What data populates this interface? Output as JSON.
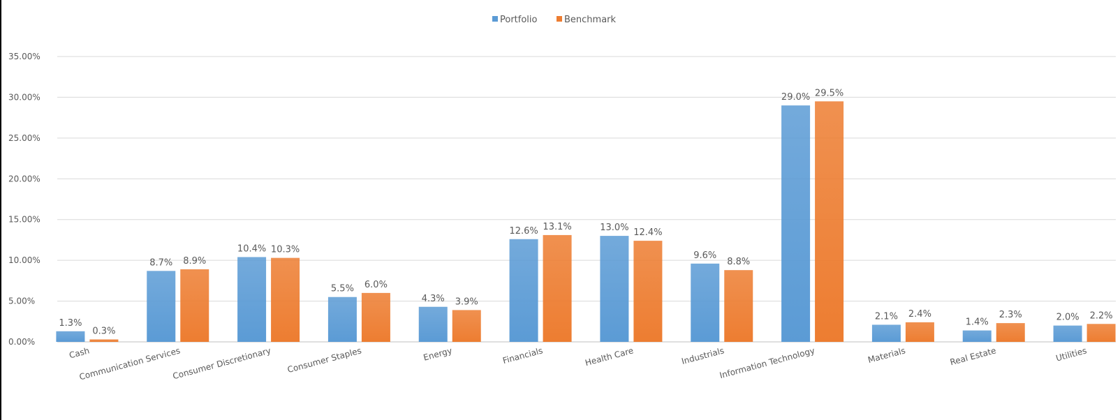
{
  "chart_data": {
    "type": "bar",
    "categories": [
      "Cash",
      "Communication Services",
      "Consumer Discretionary",
      "Consumer Staples",
      "Energy",
      "Financials",
      "Health Care",
      "Industrials",
      "Information Technology",
      "Materials",
      "Real Estate",
      "Utilities"
    ],
    "series": [
      {
        "name": "Portfolio",
        "color": "#5b9bd5",
        "values": [
          1.3,
          8.7,
          10.4,
          5.5,
          4.3,
          12.6,
          13.0,
          9.6,
          29.0,
          2.1,
          1.4,
          2.0
        ],
        "labels": [
          "1.3%",
          "8.7%",
          "10.4%",
          "5.5%",
          "4.3%",
          "12.6%",
          "13.0%",
          "9.6%",
          "29.0%",
          "2.1%",
          "1.4%",
          "2.0%"
        ]
      },
      {
        "name": "Benchmark",
        "color": "#ed7d31",
        "values": [
          0.3,
          8.9,
          10.3,
          6.0,
          3.9,
          13.1,
          12.4,
          8.8,
          29.5,
          2.4,
          2.3,
          2.2
        ],
        "labels": [
          "0.3%",
          "8.9%",
          "10.3%",
          "6.0%",
          "3.9%",
          "13.1%",
          "12.4%",
          "8.8%",
          "29.5%",
          "2.4%",
          "2.3%",
          "2.2%"
        ]
      }
    ],
    "yticks": [
      0,
      5,
      10,
      15,
      20,
      25,
      30,
      35
    ],
    "ytick_labels": [
      "0.00%",
      "5.00%",
      "10.00%",
      "15.00%",
      "20.00%",
      "25.00%",
      "30.00%",
      "35.00%"
    ],
    "ylim": [
      0,
      35
    ],
    "grid": true,
    "legend_position": "top-center"
  }
}
